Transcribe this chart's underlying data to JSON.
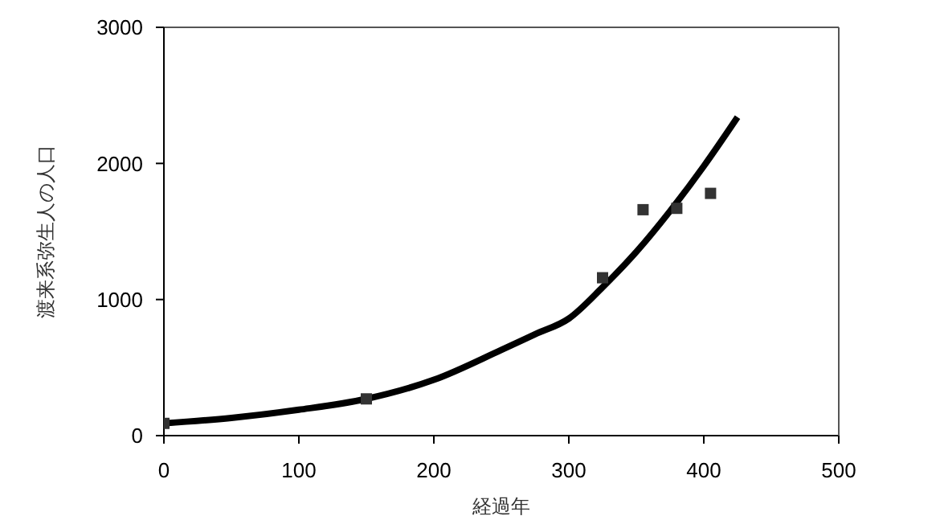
{
  "chart_data": {
    "type": "scatter",
    "xlabel": "経過年",
    "ylabel": "渡来系弥生人の人口",
    "xlim": [
      0,
      500
    ],
    "xticks": [
      0,
      100,
      200,
      300,
      400,
      500
    ],
    "ylim": [
      0,
      3000
    ],
    "yticks": [
      0,
      1000,
      2000,
      3000
    ],
    "line_style": "solid",
    "series": [
      {
        "type": "line",
        "color": "#000000",
        "marker": "none",
        "x": [
          0,
          50,
          100,
          150,
          200,
          250,
          275,
          300,
          325,
          350,
          375,
          400,
          425
        ],
        "values": [
          90,
          130,
          190,
          270,
          410,
          630,
          745,
          860,
          1090,
          1350,
          1650,
          1980,
          2340
        ]
      },
      {
        "color": "#333333",
        "marker": "square",
        "x": [
          0,
          150,
          325,
          355,
          380,
          405
        ],
        "values": [
          90,
          270,
          1160,
          1660,
          1670,
          1780
        ]
      }
    ]
  }
}
